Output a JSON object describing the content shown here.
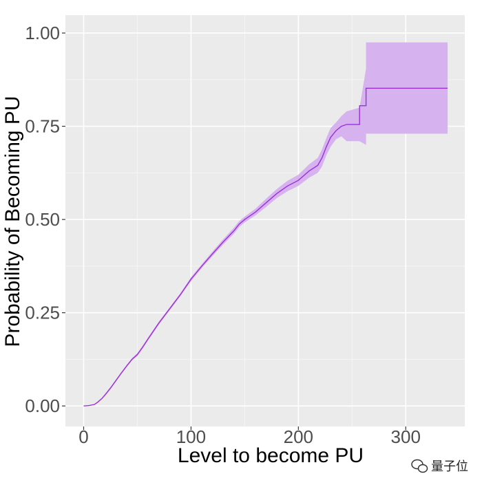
{
  "chart_data": {
    "type": "line",
    "xlabel": "Level to become PU",
    "ylabel": "Probability of Becoming PU",
    "xlim": [
      -17,
      355
    ],
    "ylim": [
      -0.055,
      1.048
    ],
    "x_ticks": [
      0,
      100,
      200,
      300
    ],
    "x_tick_labels": [
      "0",
      "100",
      "200",
      "300"
    ],
    "y_ticks": [
      0,
      0.25,
      0.5,
      0.75,
      1.0
    ],
    "y_tick_labels": [
      "0.00",
      "0.25",
      "0.50",
      "0.75",
      "1.00"
    ],
    "grid": true,
    "background": "#ebebeb",
    "colors": {
      "line": "#9b30d9",
      "ribbon": "#d6b2ef"
    },
    "series": [
      {
        "points": [
          [
            0,
            0
          ],
          [
            5,
            0.001
          ],
          [
            10,
            0.004
          ],
          [
            13,
            0.01
          ],
          [
            17,
            0.02
          ],
          [
            20,
            0.03
          ],
          [
            25,
            0.048
          ],
          [
            30,
            0.068
          ],
          [
            35,
            0.088
          ],
          [
            40,
            0.107
          ],
          [
            45,
            0.125
          ],
          [
            50,
            0.138
          ],
          [
            55,
            0.158
          ],
          [
            60,
            0.18
          ],
          [
            70,
            0.222
          ],
          [
            80,
            0.26
          ],
          [
            90,
            0.298
          ],
          [
            100,
            0.34
          ],
          [
            110,
            0.375
          ],
          [
            120,
            0.408
          ],
          [
            130,
            0.44
          ],
          [
            140,
            0.47
          ],
          [
            145,
            0.488
          ],
          [
            150,
            0.5
          ],
          [
            160,
            0.52
          ],
          [
            170,
            0.545
          ],
          [
            180,
            0.57
          ],
          [
            190,
            0.59
          ],
          [
            200,
            0.605
          ],
          [
            210,
            0.63
          ],
          [
            218,
            0.645
          ],
          [
            222,
            0.665
          ],
          [
            226,
            0.695
          ],
          [
            230,
            0.72
          ],
          [
            235,
            0.738
          ],
          [
            240,
            0.75
          ],
          [
            245,
            0.755
          ],
          [
            257,
            0.755
          ],
          [
            257,
            0.805
          ],
          [
            263,
            0.805
          ],
          [
            263,
            0.852
          ],
          [
            339,
            0.852
          ]
        ],
        "ci_lower": [
          0,
          0.0005,
          0.003,
          0.008,
          0.018,
          0.027,
          0.045,
          0.065,
          0.085,
          0.104,
          0.122,
          0.134,
          0.154,
          0.176,
          0.218,
          0.256,
          0.294,
          0.335,
          0.37,
          0.402,
          0.433,
          0.462,
          0.48,
          0.492,
          0.511,
          0.534,
          0.558,
          0.576,
          0.59,
          0.612,
          0.625,
          0.642,
          0.672,
          0.695,
          0.715,
          0.723,
          0.71,
          0.71,
          0.71,
          0.7,
          0.73,
          0.73
        ],
        "ci_upper": [
          0,
          0.0015,
          0.005,
          0.012,
          0.022,
          0.033,
          0.051,
          0.071,
          0.091,
          0.11,
          0.128,
          0.142,
          0.162,
          0.184,
          0.226,
          0.264,
          0.302,
          0.345,
          0.38,
          0.414,
          0.447,
          0.478,
          0.496,
          0.508,
          0.529,
          0.556,
          0.582,
          0.604,
          0.62,
          0.648,
          0.665,
          0.688,
          0.718,
          0.745,
          0.76,
          0.777,
          0.79,
          0.8,
          0.8,
          0.905,
          0.975,
          0.975
        ]
      }
    ]
  },
  "watermark": {
    "text": "量子位",
    "icon": "wechat-icon"
  }
}
